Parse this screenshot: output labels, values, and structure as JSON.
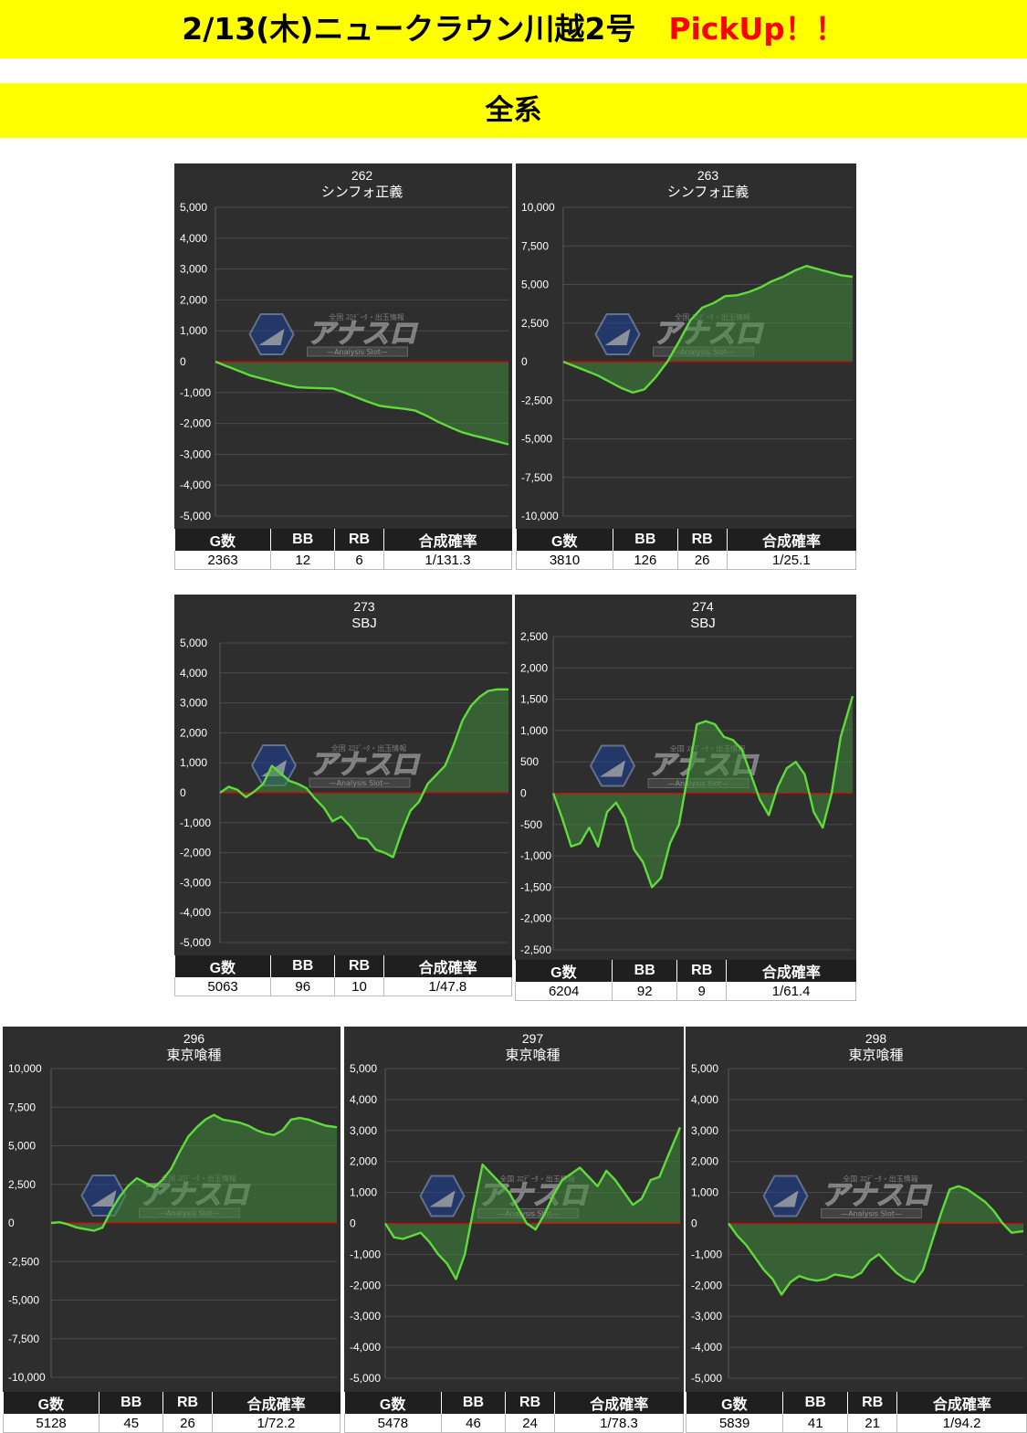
{
  "header": {
    "title": "2/13(木)ニュークラウン川越2号",
    "pickup": "PickUp！！",
    "category": "全系"
  },
  "colors": {
    "banner": "#ffff00",
    "pickup": "#ff0000",
    "chart_bg": "#2e2e2e",
    "line": "#5fdc3c",
    "zero_line": "#e00000"
  },
  "watermark": {
    "logo_text": "アナスロ",
    "sub_text": "—Analysis Slot—",
    "top_text": "全国 ｽﾛﾃﾞｰﾀ・出玉情報"
  },
  "table_headers": [
    "G数",
    "BB",
    "RB",
    "合成確率"
  ],
  "machines": [
    {
      "id": "262",
      "name": "シンフォ正義",
      "stats": [
        "2363",
        "12",
        "6",
        "1/131.3"
      ]
    },
    {
      "id": "263",
      "name": "シンフォ正義",
      "stats": [
        "3810",
        "126",
        "26",
        "1/25.1"
      ]
    },
    {
      "id": "273",
      "name": "SBJ",
      "stats": [
        "5063",
        "96",
        "10",
        "1/47.8"
      ]
    },
    {
      "id": "274",
      "name": "SBJ",
      "stats": [
        "6204",
        "92",
        "9",
        "1/61.4"
      ]
    },
    {
      "id": "296",
      "name": "東京喰種",
      "stats": [
        "5128",
        "45",
        "26",
        "1/72.2"
      ]
    },
    {
      "id": "297",
      "name": "東京喰種",
      "stats": [
        "5478",
        "46",
        "24",
        "1/78.3"
      ]
    },
    {
      "id": "298",
      "name": "東京喰種",
      "stats": [
        "5839",
        "41",
        "21",
        "1/94.2"
      ]
    }
  ],
  "chart_data": [
    {
      "type": "area",
      "title": "262 シンフォ正義",
      "ylim": [
        -5000,
        5000
      ],
      "yticks": [
        5000,
        4000,
        3000,
        2000,
        1000,
        0,
        -1000,
        -2000,
        -3000,
        -4000,
        -5000
      ],
      "yticklabels": [
        "5,000",
        "4,000",
        "3,000",
        "2,000",
        "1,000",
        "0",
        "-1,000",
        "-2,000",
        "-3,000",
        "-4,000",
        "-5,000"
      ],
      "x": [
        0,
        4,
        8,
        12,
        16,
        20,
        24,
        28,
        32,
        36,
        40,
        44,
        48,
        52,
        56,
        60,
        64,
        68,
        72,
        76,
        80,
        84,
        88,
        92,
        96,
        100
      ],
      "values": [
        0,
        -150,
        -300,
        -450,
        -550,
        -650,
        -750,
        -830,
        -850,
        -860,
        -870,
        -1000,
        -1150,
        -1300,
        -1430,
        -1480,
        -1520,
        -1580,
        -1750,
        -1950,
        -2120,
        -2280,
        -2390,
        -2480,
        -2580,
        -2680
      ]
    },
    {
      "type": "area",
      "title": "263 シンフォ正義",
      "ylim": [
        -10000,
        10000
      ],
      "yticks": [
        10000,
        7500,
        5000,
        2500,
        0,
        -2500,
        -5000,
        -7500,
        -10000
      ],
      "yticklabels": [
        "10,000",
        "7,500",
        "5,000",
        "2,500",
        "0",
        "-2,500",
        "-5,000",
        "-7,500",
        "-10,000"
      ],
      "x": [
        0,
        4,
        8,
        12,
        16,
        20,
        24,
        28,
        32,
        36,
        40,
        44,
        48,
        52,
        56,
        60,
        64,
        68,
        72,
        76,
        80,
        84,
        88,
        92,
        96,
        100
      ],
      "values": [
        0,
        -300,
        -600,
        -900,
        -1300,
        -1700,
        -2000,
        -1800,
        -1000,
        0,
        1300,
        2700,
        3500,
        3800,
        4250,
        4300,
        4500,
        4800,
        5200,
        5500,
        5900,
        6200,
        6000,
        5800,
        5600,
        5500
      ]
    },
    {
      "type": "area",
      "title": "273 SBJ",
      "ylim": [
        -5000,
        5000
      ],
      "yticks": [
        5000,
        4000,
        3000,
        2000,
        1000,
        0,
        -1000,
        -2000,
        -3000,
        -4000,
        -5000
      ],
      "yticklabels": [
        "5,000",
        "4,000",
        "3,000",
        "2,000",
        "1,000",
        "0",
        "-1,000",
        "-2,000",
        "-3,000",
        "-4,000",
        "-5,000"
      ],
      "x": [
        0,
        3,
        6,
        9,
        12,
        15,
        18,
        21,
        24,
        27,
        30,
        33,
        36,
        39,
        42,
        45,
        48,
        51,
        54,
        57,
        60,
        63,
        66,
        69,
        72,
        75,
        78,
        81,
        84,
        87,
        90,
        93,
        96,
        100
      ],
      "values": [
        0,
        200,
        100,
        -150,
        50,
        300,
        900,
        650,
        400,
        300,
        150,
        -200,
        -500,
        -950,
        -800,
        -1100,
        -1500,
        -1550,
        -1900,
        -2000,
        -2150,
        -1300,
        -600,
        -300,
        300,
        600,
        900,
        1600,
        2400,
        2900,
        3200,
        3400,
        3450,
        3450
      ]
    },
    {
      "type": "area",
      "title": "274 SBJ",
      "ylim": [
        -2500,
        2500
      ],
      "yticks": [
        2500,
        2000,
        1500,
        1000,
        500,
        0,
        -500,
        -1000,
        -1500,
        -2000,
        -2500
      ],
      "yticklabels": [
        "2,500",
        "2,000",
        "1,500",
        "1,000",
        "500",
        "0",
        "-500",
        "-1,000",
        "-1,500",
        "-2,000",
        "-2,500"
      ],
      "x": [
        0,
        3,
        6,
        9,
        12,
        15,
        18,
        21,
        24,
        27,
        30,
        33,
        36,
        39,
        42,
        45,
        48,
        51,
        54,
        57,
        60,
        63,
        66,
        69,
        72,
        75,
        78,
        81,
        84,
        87,
        90,
        93,
        96,
        100
      ],
      "values": [
        0,
        -400,
        -850,
        -800,
        -550,
        -850,
        -300,
        -150,
        -400,
        -900,
        -1100,
        -1500,
        -1350,
        -800,
        -500,
        300,
        1100,
        1150,
        1100,
        900,
        850,
        700,
        300,
        -100,
        -350,
        100,
        400,
        500,
        300,
        -300,
        -550,
        0,
        900,
        1550
      ]
    },
    {
      "type": "area",
      "title": "296 東京喰種",
      "ylim": [
        -10000,
        10000
      ],
      "yticks": [
        10000,
        7500,
        5000,
        2500,
        0,
        -2500,
        -5000,
        -7500,
        -10000
      ],
      "yticklabels": [
        "10,000",
        "7,500",
        "5,000",
        "2,500",
        "0",
        "-2,500",
        "-5,000",
        "-7,500",
        "-10,000"
      ],
      "x": [
        0,
        3,
        6,
        9,
        12,
        15,
        18,
        21,
        24,
        27,
        30,
        33,
        36,
        39,
        42,
        45,
        48,
        51,
        54,
        57,
        60,
        63,
        66,
        69,
        72,
        75,
        78,
        81,
        84,
        87,
        90,
        93,
        96,
        100
      ],
      "values": [
        0,
        50,
        -100,
        -300,
        -400,
        -500,
        -300,
        800,
        1700,
        2400,
        2900,
        2600,
        2300,
        2800,
        3500,
        4600,
        5600,
        6200,
        6700,
        7000,
        6700,
        6600,
        6500,
        6300,
        6000,
        5800,
        5700,
        6000,
        6700,
        6800,
        6700,
        6500,
        6300,
        6200
      ]
    },
    {
      "type": "area",
      "title": "297 東京喰種",
      "ylim": [
        -5000,
        5000
      ],
      "yticks": [
        5000,
        4000,
        3000,
        2000,
        1000,
        0,
        -1000,
        -2000,
        -3000,
        -4000,
        -5000
      ],
      "yticklabels": [
        "5,000",
        "4,000",
        "3,000",
        "2,000",
        "1,000",
        "0",
        "-1,000",
        "-2,000",
        "-3,000",
        "-4,000",
        "-5,000"
      ],
      "x": [
        0,
        3,
        6,
        9,
        12,
        15,
        18,
        21,
        24,
        27,
        30,
        33,
        36,
        39,
        42,
        45,
        48,
        51,
        54,
        57,
        60,
        63,
        66,
        69,
        72,
        75,
        78,
        81,
        84,
        87,
        90,
        93,
        96,
        100
      ],
      "values": [
        0,
        -450,
        -500,
        -400,
        -300,
        -600,
        -1000,
        -1300,
        -1800,
        -1000,
        500,
        1900,
        1600,
        1300,
        1000,
        500,
        0,
        -200,
        300,
        900,
        1400,
        1600,
        1800,
        1500,
        1200,
        1700,
        1400,
        1000,
        600,
        800,
        1400,
        1500,
        2200,
        3100
      ]
    },
    {
      "type": "area",
      "title": "298 東京喰種",
      "ylim": [
        -5000,
        5000
      ],
      "yticks": [
        5000,
        4000,
        3000,
        2000,
        1000,
        0,
        -1000,
        -2000,
        -3000,
        -4000,
        -5000
      ],
      "yticklabels": [
        "5,000",
        "4,000",
        "3,000",
        "2,000",
        "1,000",
        "0",
        "-1,000",
        "-2,000",
        "-3,000",
        "-4,000",
        "-5,000"
      ],
      "x": [
        0,
        3,
        6,
        9,
        12,
        15,
        18,
        21,
        24,
        27,
        30,
        33,
        36,
        39,
        42,
        45,
        48,
        51,
        54,
        57,
        60,
        63,
        66,
        69,
        72,
        75,
        78,
        81,
        84,
        87,
        90,
        93,
        96,
        100
      ],
      "values": [
        0,
        -400,
        -700,
        -1100,
        -1500,
        -1800,
        -2300,
        -1900,
        -1700,
        -1800,
        -1850,
        -1800,
        -1650,
        -1700,
        -1750,
        -1600,
        -1200,
        -1000,
        -1300,
        -1600,
        -1800,
        -1900,
        -1500,
        -600,
        300,
        1100,
        1200,
        1100,
        900,
        700,
        400,
        0,
        -300,
        -250
      ]
    }
  ]
}
